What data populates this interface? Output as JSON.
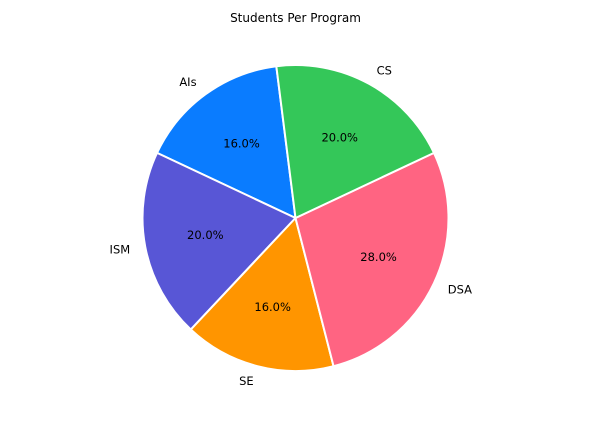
{
  "chart_data": {
    "type": "pie",
    "title": "Students Per Program",
    "start_angle_deg": 97.2,
    "direction": "counterclockwise",
    "slices": [
      {
        "label": "AIs",
        "value": 16.0,
        "pct_label": "16.0%",
        "color": "#0a7cff"
      },
      {
        "label": "ISM",
        "value": 20.0,
        "pct_label": "20.0%",
        "color": "#5856d6"
      },
      {
        "label": "SE",
        "value": 16.0,
        "pct_label": "16.0%",
        "color": "#ff9500"
      },
      {
        "label": "DSA",
        "value": 28.0,
        "pct_label": "28.0%",
        "color": "#ff6482"
      },
      {
        "label": "CS",
        "value": 20.0,
        "pct_label": "20.0%",
        "color": "#34c759"
      }
    ],
    "edge_color": "#ffffff"
  }
}
